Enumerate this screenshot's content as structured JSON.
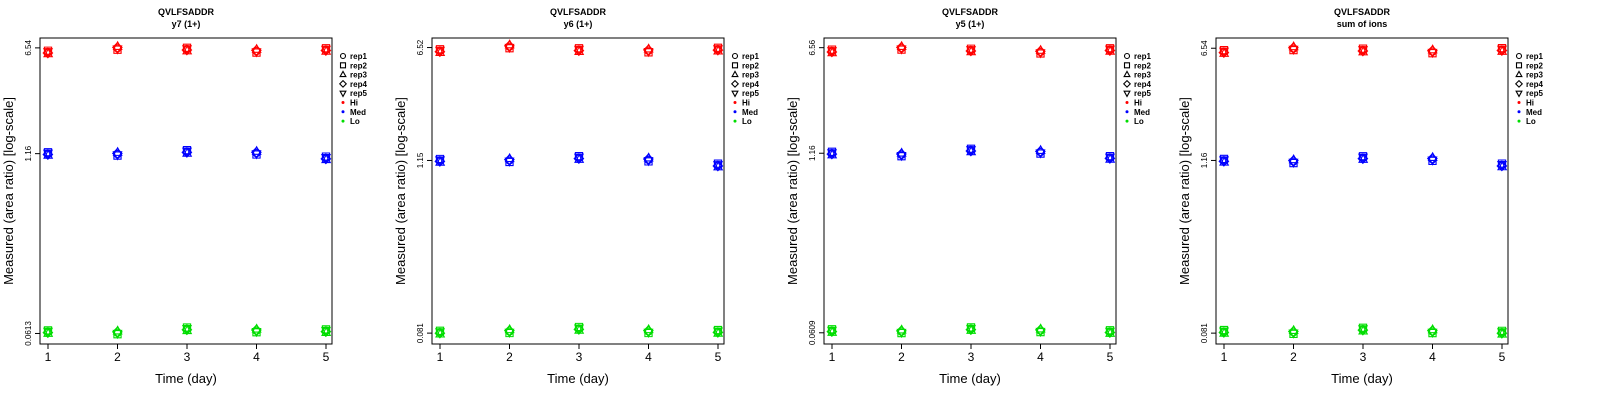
{
  "chart_data": [
    {
      "type": "scatter",
      "title": "QVLFSADDR",
      "subtitle": "y7 (1+)",
      "xlabel": "Time (day)",
      "ylabel": "Measured (area ratio) [log-scale]",
      "y_scale": "log",
      "x_ticks": [
        "1",
        "2",
        "3",
        "4",
        "5"
      ],
      "y_ticks": [
        {
          "value": 0.0613,
          "label": "0.0613"
        },
        {
          "value": 1.16,
          "label": "1.16"
        },
        {
          "value": 6.54,
          "label": "6.54"
        }
      ],
      "ylim": [
        0.056,
        7.2
      ],
      "legend": {
        "placement": "right",
        "entries": [
          {
            "label": "rep1",
            "symbol": "circle"
          },
          {
            "label": "rep2",
            "symbol": "square"
          },
          {
            "label": "rep3",
            "symbol": "triangle-up"
          },
          {
            "label": "rep4",
            "symbol": "diamond"
          },
          {
            "label": "rep5",
            "symbol": "triangle-down"
          },
          {
            "label": "Hi",
            "color": "#ff0000"
          },
          {
            "label": "Med",
            "color": "#0000ff"
          },
          {
            "label": "Lo",
            "color": "#00dd00"
          }
        ]
      },
      "series": [
        {
          "name": "Hi",
          "color": "#ff0000",
          "x": [
            1,
            2,
            3,
            4,
            5
          ],
          "y": [
            6.1,
            6.5,
            6.4,
            6.2,
            6.35
          ]
        },
        {
          "name": "Med",
          "color": "#0000ff",
          "x": [
            1,
            2,
            3,
            4,
            5
          ],
          "y": [
            1.16,
            1.15,
            1.2,
            1.17,
            1.08
          ]
        },
        {
          "name": "Lo",
          "color": "#00dd00",
          "x": [
            1,
            2,
            3,
            4,
            5
          ],
          "y": [
            0.063,
            0.062,
            0.066,
            0.064,
            0.064
          ]
        }
      ]
    },
    {
      "type": "scatter",
      "title": "QVLFSADDR",
      "subtitle": "y6 (1+)",
      "xlabel": "Time (day)",
      "ylabel": "Measured (area ratio) [log-scale]",
      "y_scale": "log",
      "x_ticks": [
        "1",
        "2",
        "3",
        "4",
        "5"
      ],
      "y_ticks": [
        {
          "value": 0.081,
          "label": "0.081"
        },
        {
          "value": 1.15,
          "label": "1.15"
        },
        {
          "value": 6.52,
          "label": "6.52"
        }
      ],
      "ylim": [
        0.074,
        7.1
      ],
      "legend": {
        "placement": "right",
        "entries": [
          {
            "label": "rep1",
            "symbol": "circle"
          },
          {
            "label": "rep2",
            "symbol": "square"
          },
          {
            "label": "rep3",
            "symbol": "triangle-up"
          },
          {
            "label": "rep4",
            "symbol": "diamond"
          },
          {
            "label": "rep5",
            "symbol": "triangle-down"
          },
          {
            "label": "Hi",
            "color": "#ff0000"
          },
          {
            "label": "Med",
            "color": "#0000ff"
          },
          {
            "label": "Lo",
            "color": "#00dd00"
          }
        ]
      },
      "series": [
        {
          "name": "Hi",
          "color": "#ff0000",
          "x": [
            1,
            2,
            3,
            4,
            5
          ],
          "y": [
            6.2,
            6.6,
            6.3,
            6.2,
            6.35
          ]
        },
        {
          "name": "Med",
          "color": "#0000ff",
          "x": [
            1,
            2,
            3,
            4,
            5
          ],
          "y": [
            1.15,
            1.15,
            1.2,
            1.16,
            1.07
          ]
        },
        {
          "name": "Lo",
          "color": "#00dd00",
          "x": [
            1,
            2,
            3,
            4,
            5
          ],
          "y": [
            0.082,
            0.083,
            0.087,
            0.083,
            0.083
          ]
        }
      ]
    },
    {
      "type": "scatter",
      "title": "QVLFSADDR",
      "subtitle": "y5 (1+)",
      "xlabel": "Time (day)",
      "ylabel": "Measured (area ratio) [log-scale]",
      "y_scale": "log",
      "x_ticks": [
        "1",
        "2",
        "3",
        "4",
        "5"
      ],
      "y_ticks": [
        {
          "value": 0.0609,
          "label": "0.0609"
        },
        {
          "value": 1.16,
          "label": "1.16"
        },
        {
          "value": 6.56,
          "label": "6.56"
        }
      ],
      "ylim": [
        0.055,
        7.2
      ],
      "legend": {
        "placement": "right",
        "entries": [
          {
            "label": "rep1",
            "symbol": "circle"
          },
          {
            "label": "rep2",
            "symbol": "square"
          },
          {
            "label": "rep3",
            "symbol": "triangle-up"
          },
          {
            "label": "rep4",
            "symbol": "diamond"
          },
          {
            "label": "rep5",
            "symbol": "triangle-down"
          },
          {
            "label": "Hi",
            "color": "#ff0000"
          },
          {
            "label": "Med",
            "color": "#0000ff"
          },
          {
            "label": "Lo",
            "color": "#00dd00"
          }
        ]
      },
      "series": [
        {
          "name": "Hi",
          "color": "#ff0000",
          "x": [
            1,
            2,
            3,
            4,
            5
          ],
          "y": [
            6.2,
            6.5,
            6.3,
            6.1,
            6.35
          ]
        },
        {
          "name": "Med",
          "color": "#0000ff",
          "x": [
            1,
            2,
            3,
            4,
            5
          ],
          "y": [
            1.16,
            1.13,
            1.22,
            1.18,
            1.08
          ]
        },
        {
          "name": "Lo",
          "color": "#00dd00",
          "x": [
            1,
            2,
            3,
            4,
            5
          ],
          "y": [
            0.063,
            0.062,
            0.065,
            0.063,
            0.062
          ]
        }
      ]
    },
    {
      "type": "scatter",
      "title": "QVLFSADDR",
      "subtitle": "sum of ions",
      "xlabel": "Time (day)",
      "ylabel": "Measured (area ratio) [log-scale]",
      "y_scale": "log",
      "x_ticks": [
        "1",
        "2",
        "3",
        "4",
        "5"
      ],
      "y_ticks": [
        {
          "value": 0.081,
          "label": "0.081"
        },
        {
          "value": 1.16,
          "label": "1.16"
        },
        {
          "value": 6.54,
          "label": "6.54"
        }
      ],
      "ylim": [
        0.074,
        7.2
      ],
      "legend": {
        "placement": "right",
        "entries": [
          {
            "label": "rep1",
            "symbol": "circle"
          },
          {
            "label": "rep2",
            "symbol": "square"
          },
          {
            "label": "rep3",
            "symbol": "triangle-up"
          },
          {
            "label": "rep4",
            "symbol": "diamond"
          },
          {
            "label": "rep5",
            "symbol": "triangle-down"
          },
          {
            "label": "Hi",
            "color": "#ff0000"
          },
          {
            "label": "Med",
            "color": "#0000ff"
          },
          {
            "label": "Lo",
            "color": "#00dd00"
          }
        ]
      },
      "series": [
        {
          "name": "Hi",
          "color": "#ff0000",
          "x": [
            1,
            2,
            3,
            4,
            5
          ],
          "y": [
            6.2,
            6.5,
            6.35,
            6.2,
            6.4
          ]
        },
        {
          "name": "Med",
          "color": "#0000ff",
          "x": [
            1,
            2,
            3,
            4,
            5
          ],
          "y": [
            1.16,
            1.14,
            1.21,
            1.18,
            1.08
          ]
        },
        {
          "name": "Lo",
          "color": "#00dd00",
          "x": [
            1,
            2,
            3,
            4,
            5
          ],
          "y": [
            0.083,
            0.082,
            0.086,
            0.083,
            0.082
          ]
        }
      ]
    }
  ]
}
